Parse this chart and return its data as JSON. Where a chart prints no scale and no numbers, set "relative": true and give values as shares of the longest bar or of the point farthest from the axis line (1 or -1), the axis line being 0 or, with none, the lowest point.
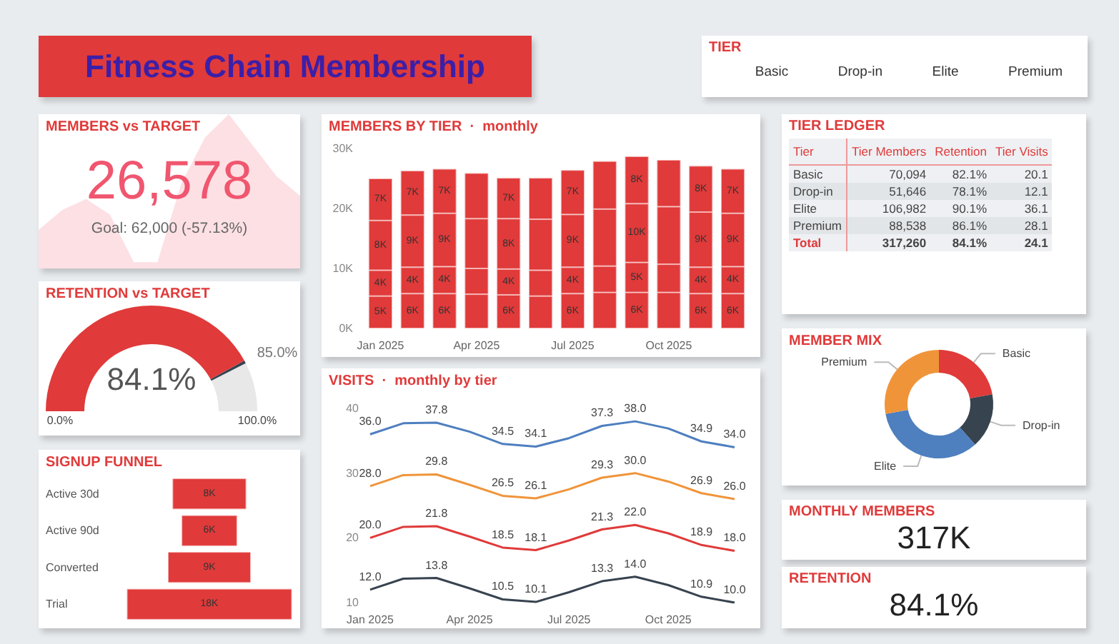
{
  "chart_data": [
    {
      "type": "other",
      "title": "Fitness Chain Membership"
    },
    {
      "type": "other",
      "title": "TIER",
      "annotations": [
        "Basic",
        "Drop-in",
        "Elite",
        "Premium"
      ]
    },
    {
      "type": "area",
      "title": "MEMBERS vs TARGET",
      "relative": true,
      "categories": [
        null,
        null,
        null,
        null,
        null,
        null,
        null,
        null,
        null,
        null,
        null,
        null
      ],
      "values": [
        0.25,
        0.38,
        0.45,
        0.35,
        0.04,
        0.04,
        0.55,
        0.85,
        1.0,
        0.8,
        0.6,
        0.47
      ],
      "color": "#fde0e4",
      "annotations": [
        "26,578",
        "Goal: 62,000 (-57.13%)"
      ]
    },
    {
      "type": "bar",
      "title": "MEMBERS BY TIER  ·  monthly",
      "stacked": true,
      "categories": [
        "Jan 2025",
        null,
        null,
        "Apr 2025",
        null,
        null,
        "Jul 2025",
        null,
        null,
        "Oct 2025",
        null,
        null
      ],
      "ylim": [
        0,
        30
      ],
      "yticks": [
        {
          "value": 0,
          "label": "0K"
        },
        {
          "value": 10,
          "label": "10K"
        },
        {
          "value": 20,
          "label": "20K"
        },
        {
          "value": 30,
          "label": "30K"
        }
      ],
      "series": [
        {
          "color": "#e03a3a",
          "values": [
            5.4,
            5.8,
            5.8,
            5.7,
            5.6,
            5.4,
            5.8,
            6.0,
            6.0,
            6.0,
            5.8,
            5.8
          ],
          "value_labels": [
            "5K",
            "6K",
            "6K",
            null,
            "6K",
            null,
            "6K",
            null,
            "6K",
            null,
            "6K",
            "6K"
          ]
        },
        {
          "color": "#e03a3a",
          "values": [
            4.3,
            4.4,
            4.5,
            4.3,
            4.3,
            4.3,
            4.4,
            4.4,
            5.0,
            4.7,
            4.4,
            4.5
          ],
          "value_labels": [
            "4K",
            "4K",
            "4K",
            null,
            "4K",
            null,
            "4K",
            null,
            "5K",
            null,
            "4K",
            "4K"
          ]
        },
        {
          "color": "#e03a3a",
          "values": [
            8.3,
            8.7,
            8.9,
            8.3,
            8.4,
            8.5,
            8.8,
            9.5,
            9.8,
            9.6,
            9.2,
            8.9
          ],
          "value_labels": [
            "8K",
            "9K",
            "9K",
            null,
            "8K",
            null,
            "9K",
            null,
            "10K",
            null,
            "9K",
            "9K"
          ]
        },
        {
          "color": "#e03a3a",
          "values": [
            7.0,
            7.4,
            7.4,
            7.6,
            6.8,
            6.9,
            7.4,
            8.0,
            7.9,
            7.8,
            7.7,
            7.4
          ],
          "value_labels": [
            "7K",
            "7K",
            "7K",
            null,
            "7K",
            null,
            "7K",
            null,
            "8K",
            null,
            "8K",
            "7K"
          ]
        }
      ]
    },
    {
      "type": "other",
      "title": "TIER LEDGER",
      "xlabel": "Tier",
      "categories": [
        "Basic",
        "Drop-in",
        "Elite",
        "Premium",
        "Total"
      ],
      "series": [
        {
          "name": "Tier Members",
          "colors": [
            "#eef0f3",
            "#e2e5e8",
            "#eef0f3",
            "#e2e5e8",
            "#eef0f3"
          ],
          "values": [
            70094,
            51646,
            106982,
            88538,
            317260
          ],
          "value_labels": [
            "70,094",
            "51,646",
            "106,982",
            "88,538",
            "317,260"
          ]
        },
        {
          "name": "Retention",
          "colors": [
            "#eef0f3",
            "#e2e5e8",
            "#eef0f3",
            "#e2e5e8",
            "#eef0f3"
          ],
          "values": [
            82.1,
            78.1,
            90.1,
            86.1,
            84.1
          ],
          "value_labels": [
            "82.1%",
            "78.1%",
            "90.1%",
            "86.1%",
            "84.1%"
          ]
        },
        {
          "name": "Tier Visits",
          "colors": [
            "#eef0f3",
            "#e2e5e8",
            "#eef0f3",
            "#e2e5e8",
            "#eef0f3"
          ],
          "values": [
            20.1,
            12.1,
            36.1,
            28.1,
            24.1
          ],
          "value_labels": [
            "20.1",
            "12.1",
            "36.1",
            "28.1",
            "24.1"
          ]
        }
      ]
    },
    {
      "type": "donut",
      "title": "RETENTION vs TARGET",
      "categories": [
        null,
        null,
        null
      ],
      "values": [
        84.1,
        0.9,
        15.0
      ],
      "colors": [
        "#e03a3a",
        "#37434f",
        "#e8e8e8"
      ],
      "annotations": [
        "84.1%",
        "0.0%",
        "100.0%",
        "85.0%"
      ]
    },
    {
      "type": "line",
      "title": "VISITS  ·  monthly by tier",
      "categories": [
        "Jan 2025",
        null,
        null,
        "Apr 2025",
        null,
        null,
        "Jul 2025",
        null,
        null,
        "Oct 2025",
        null,
        null
      ],
      "ylim": [
        10,
        40
      ],
      "yticks": [
        10,
        20,
        30,
        40
      ],
      "series": [
        {
          "color": "#4e7fbf",
          "values": [
            36.0,
            37.7,
            37.8,
            36.4,
            34.5,
            34.1,
            35.4,
            37.3,
            38.0,
            36.9,
            34.9,
            34.0
          ],
          "value_labels": [
            "36.0",
            null,
            "37.8",
            null,
            "34.5",
            "34.1",
            null,
            "37.3",
            "38.0",
            null,
            "34.9",
            "34.0"
          ]
        },
        {
          "color": "#f0943a",
          "values": [
            28.0,
            29.7,
            29.8,
            28.2,
            26.5,
            26.1,
            27.5,
            29.3,
            30.0,
            28.7,
            26.9,
            26.0
          ],
          "value_labels": [
            "28.0",
            null,
            "29.8",
            null,
            "26.5",
            "26.1",
            null,
            "29.3",
            "30.0",
            null,
            "26.9",
            "26.0"
          ]
        },
        {
          "color": "#e03a3a",
          "values": [
            20.0,
            21.7,
            21.8,
            20.2,
            18.5,
            18.1,
            19.6,
            21.3,
            22.0,
            20.7,
            18.9,
            18.0
          ],
          "value_labels": [
            "20.0",
            null,
            "21.8",
            null,
            "18.5",
            "18.1",
            null,
            "21.3",
            "22.0",
            null,
            "18.9",
            "18.0"
          ]
        },
        {
          "color": "#37434f",
          "values": [
            12.0,
            13.7,
            13.8,
            12.2,
            10.5,
            10.1,
            11.6,
            13.3,
            14.0,
            12.7,
            10.9,
            10.0
          ],
          "value_labels": [
            "12.0",
            null,
            "13.8",
            null,
            "10.5",
            "10.1",
            null,
            "13.3",
            "14.0",
            null,
            "10.9",
            "10.0"
          ]
        }
      ]
    },
    {
      "type": "donut",
      "title": "MEMBER MIX",
      "categories": [
        "Basic",
        "Drop-in",
        "Elite",
        "Premium"
      ],
      "values": [
        22.1,
        16.3,
        33.7,
        27.9
      ],
      "colors": [
        "#e03a3a",
        "#37434f",
        "#4e7fbf",
        "#f0943a"
      ]
    },
    {
      "type": "other",
      "title": "SIGNUP FUNNEL",
      "categories": [
        "Active 30d",
        "Active 90d",
        "Converted",
        "Trial"
      ],
      "values": [
        8,
        6,
        9,
        18
      ],
      "color": "#e03a3a",
      "value_labels": [
        "8K",
        "6K",
        "9K",
        "18K"
      ]
    },
    {
      "type": "other",
      "title": "MONTHLY MEMBERS",
      "annotations": [
        "317K"
      ]
    },
    {
      "type": "other",
      "title": "RETENTION",
      "annotations": [
        "84.1%"
      ]
    }
  ]
}
